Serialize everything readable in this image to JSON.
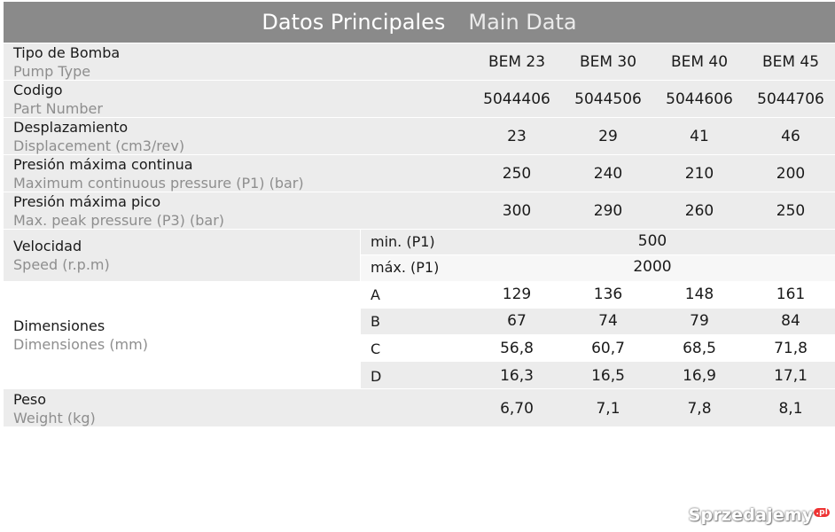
{
  "header": {
    "title_es": "Datos Principales",
    "title_en": "Main Data"
  },
  "models": [
    "BEM 23",
    "BEM 30",
    "BEM 40",
    "BEM 45"
  ],
  "part_numbers": [
    "5044406",
    "5044506",
    "5044606",
    "5044706"
  ],
  "rows": {
    "pump_type": {
      "es": "Tipo de Bomba",
      "en": "Pump Type"
    },
    "part_number": {
      "es": "Codigo",
      "en": "Part Number"
    },
    "displacement": {
      "es": "Desplazamiento",
      "en": "Displacement (cm3/rev)",
      "values": [
        "23",
        "29",
        "41",
        "46"
      ]
    },
    "max_cont": {
      "es": "Presión máxima continua",
      "en": "Maximum continuous pressure (P1) (bar)",
      "values": [
        "250",
        "240",
        "210",
        "200"
      ]
    },
    "max_peak": {
      "es": "Presión máxima pico",
      "en": "Max. peak pressure (P3) (bar)",
      "values": [
        "300",
        "290",
        "260",
        "250"
      ]
    },
    "speed": {
      "es": "Velocidad",
      "en": "Speed (r.p.m)",
      "min_label": "min. (P1)",
      "min_value": "500",
      "max_label": "máx. (P1)",
      "max_value": "2000"
    },
    "dimensions": {
      "es": "Dimensiones",
      "en": "Dimensiones (mm)",
      "items": [
        {
          "label": "A",
          "values": [
            "129",
            "136",
            "148",
            "161"
          ]
        },
        {
          "label": "B",
          "values": [
            "67",
            "74",
            "79",
            "84"
          ]
        },
        {
          "label": "C",
          "values": [
            "56,8",
            "60,7",
            "68,5",
            "71,8"
          ]
        },
        {
          "label": "D",
          "values": [
            "16,3",
            "16,5",
            "16,9",
            "17,1"
          ]
        }
      ]
    },
    "weight": {
      "es": "Peso",
      "en": "Weight (kg)",
      "values": [
        "6,70",
        "7,1",
        "7,8",
        "8,1"
      ]
    }
  },
  "watermark": {
    "text": "Sprzedajemy",
    "badge": ".pl"
  }
}
